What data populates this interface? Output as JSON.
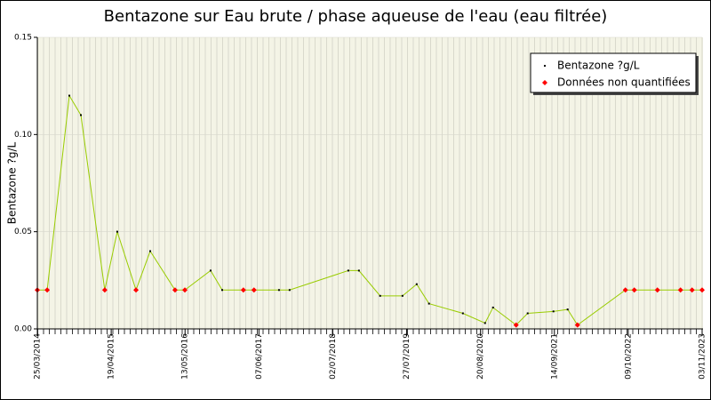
{
  "chart_data": {
    "type": "line",
    "title": "Bentazone sur Eau brute / phase aqueuse de l'eau (eau filtrée)",
    "ylabel": "Bentazone ?g/L",
    "x": [
      "25/03/2014",
      "16/05/2014",
      "10/09/2014",
      "10/11/2014",
      "16/03/2015",
      "21/05/2015",
      "28/08/2015",
      "11/11/2015",
      "21/03/2016",
      "12/05/2016",
      "25/09/2016",
      "25/11/2016",
      "17/03/2017",
      "12/05/2017",
      "21/09/2017",
      "16/11/2017",
      "22/09/2018",
      "17/11/2018",
      "09/03/2019",
      "05/07/2019",
      "18/09/2019",
      "22/11/2019",
      "19/05/2020",
      "13/09/2020",
      "25/10/2020",
      "24/02/2021",
      "26/04/2021",
      "09/09/2021",
      "23/11/2021",
      "14/01/2022",
      "24/09/2022",
      "10/11/2022",
      "12/03/2023",
      "12/07/2023",
      "11/09/2023",
      "03/11/2023"
    ],
    "series": [
      {
        "name": "Bentazone ?g/L",
        "color": "#99cc00",
        "marker_color": "#000000",
        "values": [
          0.02,
          0.02,
          0.12,
          0.11,
          0.02,
          0.05,
          0.02,
          0.04,
          0.02,
          0.02,
          0.03,
          0.02,
          0.02,
          0.02,
          0.02,
          0.02,
          0.03,
          0.03,
          0.017,
          0.017,
          0.023,
          0.013,
          0.008,
          0.003,
          0.011,
          0.002,
          0.008,
          0.009,
          0.01,
          0.002,
          0.02,
          0.02,
          0.02,
          0.02,
          0.02,
          0.02
        ]
      },
      {
        "name": "Données non quantifiées",
        "color": "#ff0000",
        "marker": "diamond",
        "values": [
          0.02,
          0.02,
          null,
          null,
          0.02,
          null,
          0.02,
          null,
          0.02,
          0.02,
          null,
          null,
          0.02,
          0.02,
          null,
          null,
          null,
          null,
          null,
          null,
          null,
          null,
          null,
          null,
          null,
          0.002,
          null,
          null,
          null,
          0.002,
          0.02,
          0.02,
          0.02,
          0.02,
          0.02,
          0.02
        ]
      }
    ],
    "xlim": [
      "25/03/2014",
      "03/11/2023"
    ],
    "xticks": [
      "25/03/2014",
      "19/04/2015",
      "13/05/2016",
      "07/06/2017",
      "02/07/2018",
      "27/07/2019",
      "20/08/2020",
      "14/09/2021",
      "09/10/2022",
      "03/11/2023"
    ],
    "ylim": [
      0,
      0.15
    ],
    "yticks": [
      {
        "value": 0,
        "label": "0.00"
      },
      0.05,
      {
        "value": 0.1,
        "label": "0.10"
      },
      0.15
    ],
    "grid": true,
    "legend": "upper right"
  }
}
